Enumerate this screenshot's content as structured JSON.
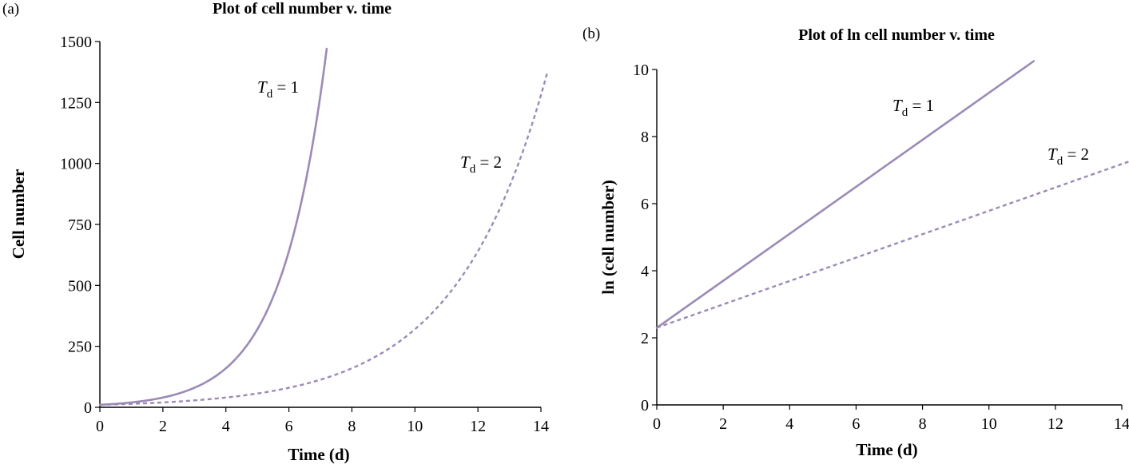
{
  "chart_data": [
    {
      "panel": "(a)",
      "type": "line",
      "title": "Plot of cell number v. time",
      "xlabel": "Time (d)",
      "ylabel": "Cell number",
      "xlim": [
        0,
        14
      ],
      "ylim": [
        0,
        1500
      ],
      "xticks": [
        "0",
        "2",
        "4",
        "6",
        "8",
        "10",
        "12",
        "14"
      ],
      "yticks": [
        "0",
        "250",
        "500",
        "750",
        "1000",
        "1250",
        "1500"
      ],
      "series": [
        {
          "label_main": "T",
          "label_sub": "d",
          "label_rest": " = 1",
          "style": "solid",
          "doubling_time": 1,
          "n0": 10,
          "x_end": 7.2,
          "points": [
            [
              0,
              10
            ],
            [
              1,
              20
            ],
            [
              2,
              40
            ],
            [
              3,
              80
            ],
            [
              4,
              160
            ],
            [
              5,
              320
            ],
            [
              6,
              640
            ],
            [
              7,
              1280
            ],
            [
              7.2,
              1470
            ]
          ]
        },
        {
          "label_main": "T",
          "label_sub": "d",
          "label_rest": " = 2",
          "style": "dashed",
          "doubling_time": 2,
          "n0": 10,
          "x_end": 14.2,
          "points": [
            [
              0,
              10
            ],
            [
              2,
              20
            ],
            [
              4,
              40
            ],
            [
              6,
              80
            ],
            [
              8,
              160
            ],
            [
              10,
              320
            ],
            [
              12,
              640
            ],
            [
              14,
              1280
            ],
            [
              14.2,
              1370
            ]
          ]
        }
      ],
      "color": "#9b8ab7"
    },
    {
      "panel": "(b)",
      "type": "line",
      "title": "Plot of ln cell number v. time",
      "xlabel": "Time (d)",
      "ylabel": "ln (cell number)",
      "xlim": [
        0,
        14
      ],
      "ylim": [
        0,
        10
      ],
      "xticks": [
        "0",
        "2",
        "4",
        "6",
        "8",
        "10",
        "12",
        "14"
      ],
      "yticks": [
        "0",
        "2",
        "4",
        "6",
        "8",
        "10"
      ],
      "series": [
        {
          "label_main": "T",
          "label_sub": "d",
          "label_rest": " = 1",
          "style": "solid",
          "x_end": 11.35,
          "points": [
            [
              0,
              2.3
            ],
            [
              11.35,
              10.25
            ]
          ]
        },
        {
          "label_main": "T",
          "label_sub": "d",
          "label_rest": " = 2",
          "style": "dashed",
          "x_end": 14.2,
          "points": [
            [
              0,
              2.3
            ],
            [
              14.2,
              7.25
            ]
          ]
        }
      ],
      "color": "#9b8ab7"
    }
  ]
}
